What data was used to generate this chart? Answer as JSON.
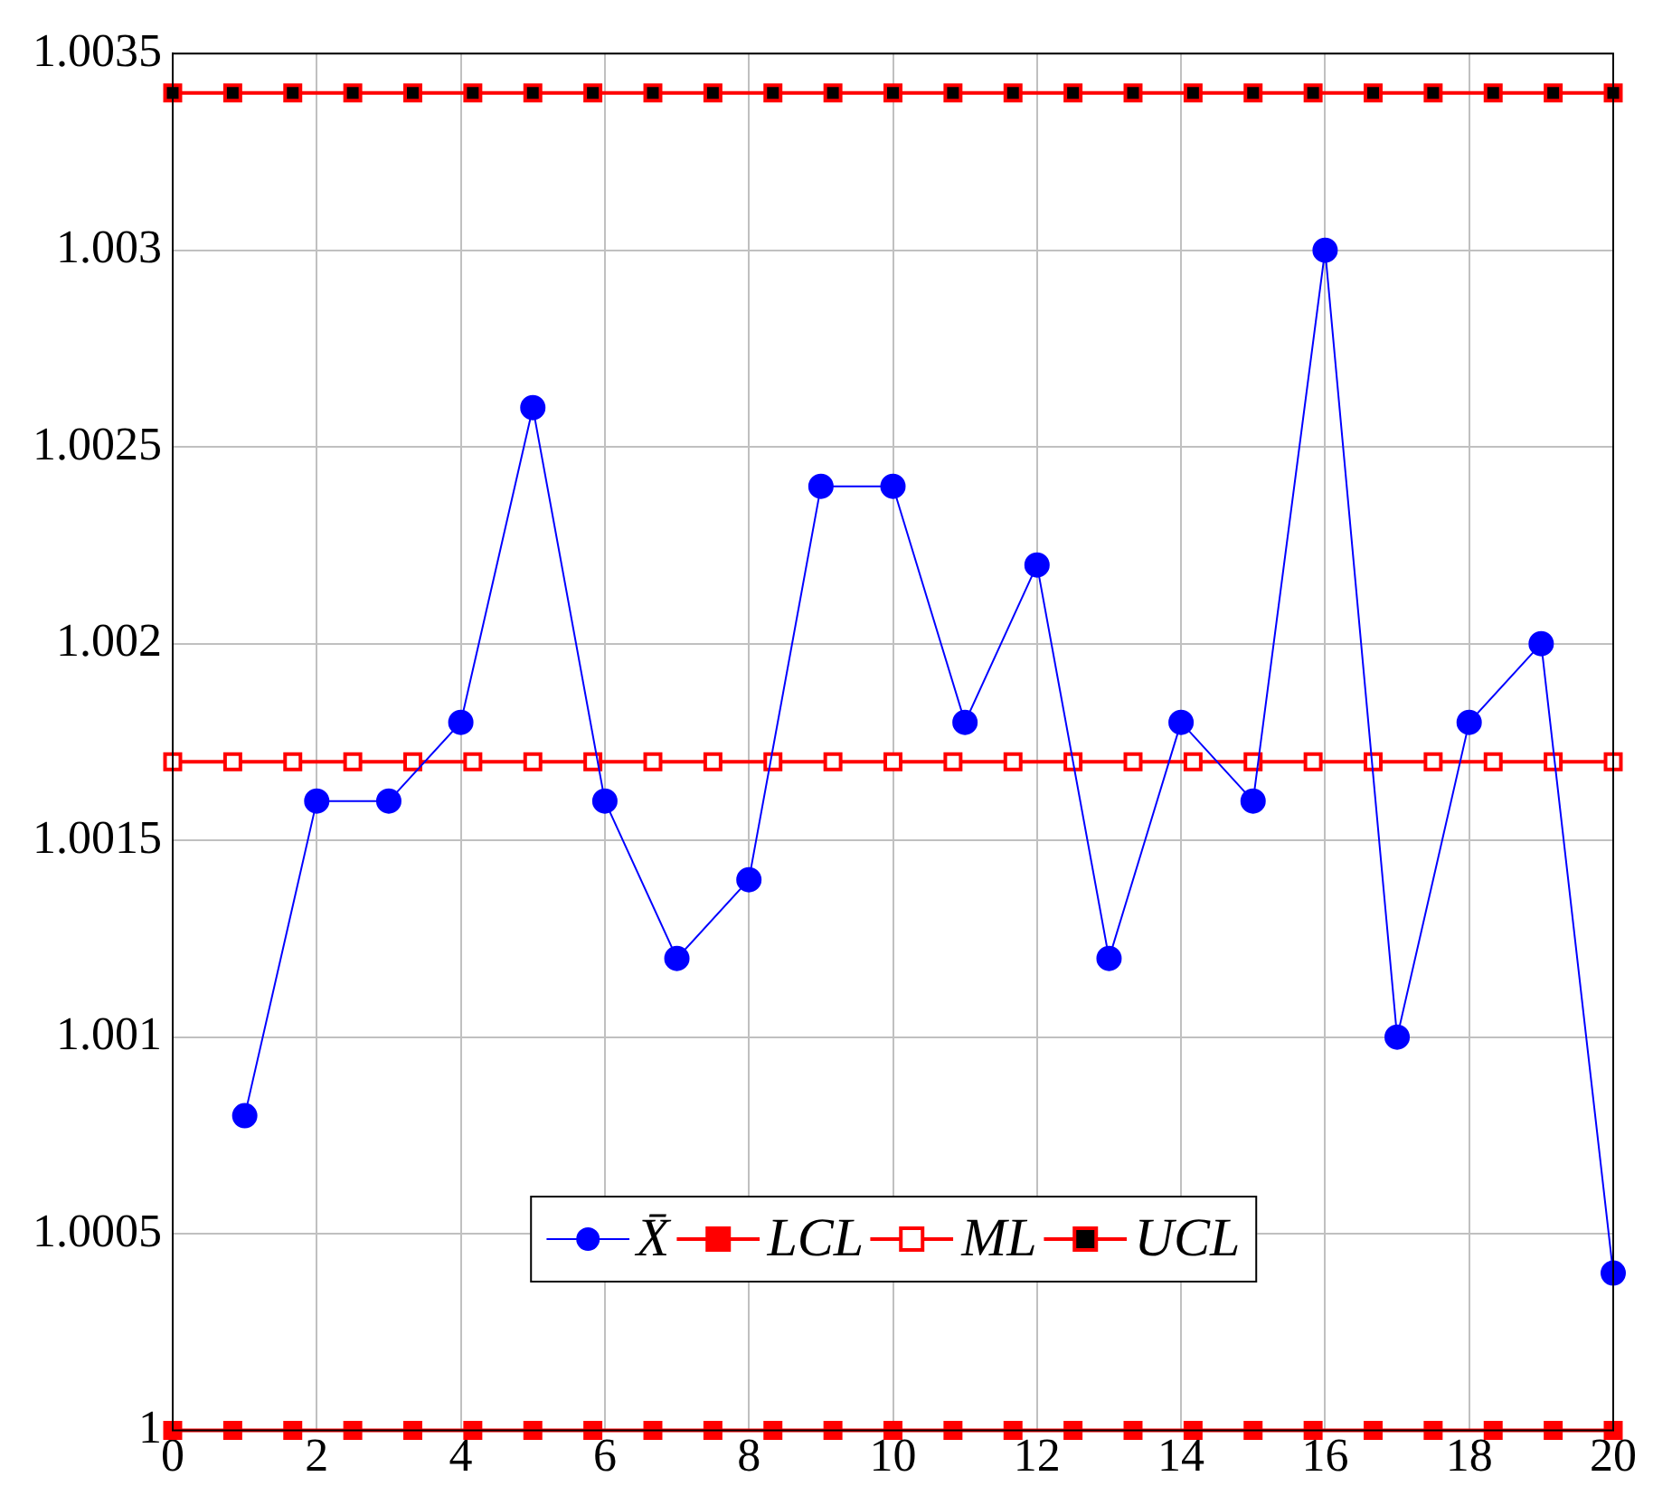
{
  "chart_data": {
    "type": "line",
    "xlim": [
      0,
      20
    ],
    "xticks": [
      0,
      2,
      4,
      6,
      8,
      10,
      12,
      14,
      16,
      18,
      20
    ],
    "ylim": [
      1,
      1.0035
    ],
    "yticks": [
      1,
      1.0005,
      1.001,
      1.0015,
      1.002,
      1.0025,
      1.003,
      1.0035
    ],
    "grid": true,
    "legend": "bottom",
    "line_style": "solid",
    "series": [
      {
        "name": "X̄",
        "color": "#0000ff",
        "marker": "circle",
        "x": [
          1,
          2,
          3,
          4,
          5,
          6,
          7,
          8,
          9,
          10,
          11,
          12,
          13,
          14,
          15,
          16,
          17,
          18,
          19,
          20
        ],
        "values": [
          1.0008,
          1.0016,
          1.0016,
          1.0018,
          1.0026,
          1.0016,
          1.0012,
          1.0014,
          1.0024,
          1.0024,
          1.0018,
          1.0022,
          1.0012,
          1.0018,
          1.0016,
          1.003,
          1.001,
          1.0018,
          1.002,
          1.0004
        ]
      },
      {
        "name": "LCL",
        "color": "#ff0000",
        "marker": "square",
        "x": [
          0,
          0.8333,
          1.6667,
          2.5,
          3.3333,
          4.1667,
          5,
          5.8333,
          6.6667,
          7.5,
          8.3333,
          9.1667,
          10,
          10.8333,
          11.6667,
          12.5,
          13.3333,
          14.1667,
          15,
          15.8333,
          16.6667,
          17.5,
          18.3333,
          19.1667,
          20
        ],
        "values": [
          1,
          1,
          1,
          1,
          1,
          1,
          1,
          1,
          1,
          1,
          1,
          1,
          1,
          1,
          1,
          1,
          1,
          1,
          1,
          1,
          1,
          1,
          1,
          1,
          1
        ]
      },
      {
        "name": "ML",
        "color": "#ff0000",
        "marker": "square",
        "x": [
          0,
          0.8333,
          1.6667,
          2.5,
          3.3333,
          4.1667,
          5,
          5.8333,
          6.6667,
          7.5,
          8.3333,
          9.1667,
          10,
          10.8333,
          11.6667,
          12.5,
          13.3333,
          14.1667,
          15,
          15.8333,
          16.6667,
          17.5,
          18.3333,
          19.1667,
          20
        ],
        "values": [
          1.0017,
          1.0017,
          1.0017,
          1.0017,
          1.0017,
          1.0017,
          1.0017,
          1.0017,
          1.0017,
          1.0017,
          1.0017,
          1.0017,
          1.0017,
          1.0017,
          1.0017,
          1.0017,
          1.0017,
          1.0017,
          1.0017,
          1.0017,
          1.0017,
          1.0017,
          1.0017,
          1.0017,
          1.0017
        ]
      },
      {
        "name": "UCL",
        "color": "#ff0000",
        "marker": "square",
        "x": [
          0,
          0.8333,
          1.6667,
          2.5,
          3.3333,
          4.1667,
          5,
          5.8333,
          6.6667,
          7.5,
          8.3333,
          9.1667,
          10,
          10.8333,
          11.6667,
          12.5,
          13.3333,
          14.1667,
          15,
          15.8333,
          16.6667,
          17.5,
          18.3333,
          19.1667,
          20
        ],
        "values": [
          1.0034,
          1.0034,
          1.0034,
          1.0034,
          1.0034,
          1.0034,
          1.0034,
          1.0034,
          1.0034,
          1.0034,
          1.0034,
          1.0034,
          1.0034,
          1.0034,
          1.0034,
          1.0034,
          1.0034,
          1.0034,
          1.0034,
          1.0034,
          1.0034,
          1.0034,
          1.0034,
          1.0034,
          1.0034
        ]
      }
    ]
  }
}
